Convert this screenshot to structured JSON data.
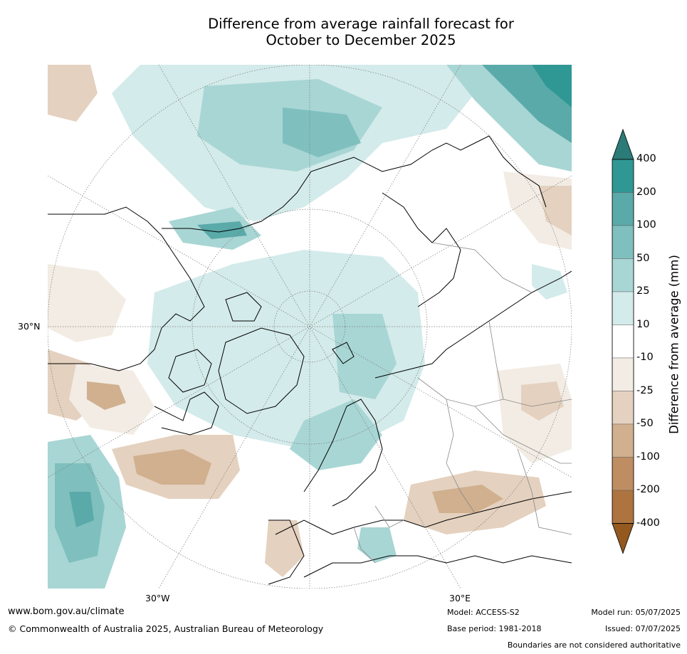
{
  "title": {
    "line1": "Difference from average rainfall forecast for",
    "line2": "October to December 2025"
  },
  "map": {
    "projection": "north-polar-stereographic",
    "graticule_labels": {
      "lat": [
        "30°N"
      ],
      "lon": [
        "30°W",
        "30°E"
      ]
    }
  },
  "colorbar": {
    "title": "Difference from average (mm)",
    "labels": [
      "400",
      "200",
      "100",
      "50",
      "25",
      "10",
      "-10",
      "-25",
      "-50",
      "-100",
      "-200",
      "-400"
    ],
    "colors": {
      "over": "#2b7b78",
      "gt400": "#2f9894",
      "200_400": "#5aaaa9",
      "100_200": "#7fc0be",
      "50_100": "#a8d6d4",
      "25_50": "#d3ebea",
      "neutral": "#ffffff",
      "n25_10": "#f2ece4",
      "n50_25": "#e4d1bf",
      "n100_50": "#d0b08f",
      "n200_100": "#be8e62",
      "n400_200": "#ad7440",
      "under": "#93591f"
    }
  },
  "footer": {
    "url": "www.bom.gov.au/climate",
    "copyright": "© Commonwealth of Australia 2025, Australian Bureau of Meteorology",
    "model": "Model: ACCESS-S2",
    "base_period": "Base period: 1981-2018",
    "model_run": "Model run: 05/07/2025",
    "issued": "Issued: 07/07/2025",
    "disclaimer": "Boundaries are not considered authoritative"
  }
}
